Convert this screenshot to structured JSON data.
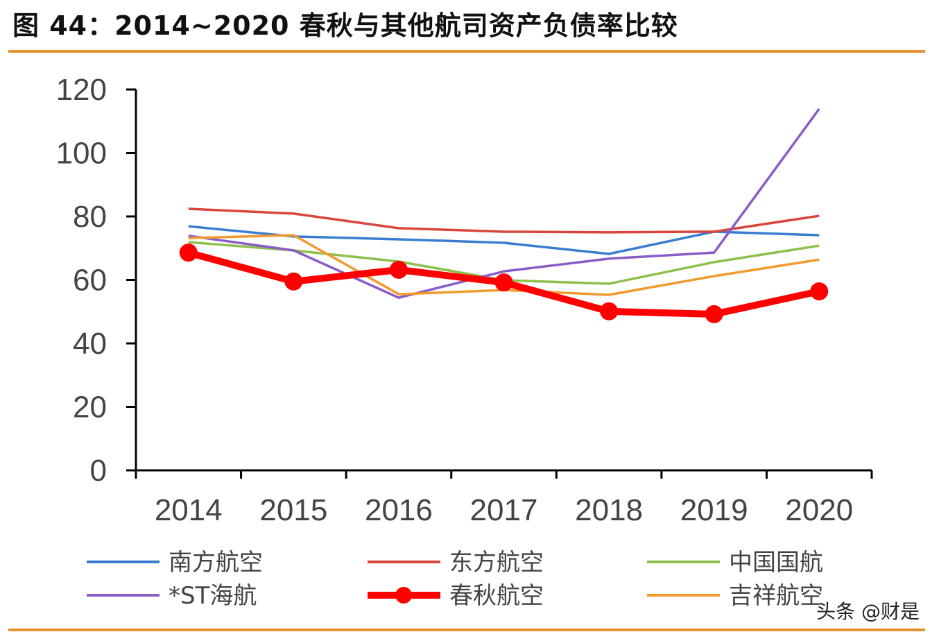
{
  "title": "图 44：2014~2020 春秋与其他航司资产负债率比较",
  "watermark": "头条 @财是",
  "chart_data": {
    "type": "line",
    "title": "图 44：2014~2020 春秋与其他航司资产负债率比较",
    "xlabel": "",
    "ylabel": "",
    "categories": [
      "2014",
      "2015",
      "2016",
      "2017",
      "2018",
      "2019",
      "2020"
    ],
    "ylim": [
      0,
      120
    ],
    "yticks": [
      0,
      20,
      40,
      60,
      80,
      100,
      120
    ],
    "grid": false,
    "legend_position": "bottom",
    "series": [
      {
        "name": "南方航空",
        "color": "#3a7dd0",
        "values": [
          76.9,
          73.7,
          72.8,
          71.7,
          68.2,
          75.2,
          74.1
        ]
      },
      {
        "name": "东方航空",
        "color": "#d9453b",
        "values": [
          82.4,
          80.9,
          76.3,
          75.2,
          75.0,
          75.2,
          80.2
        ]
      },
      {
        "name": "中国国航",
        "color": "#8cc04a",
        "values": [
          71.9,
          69.3,
          65.8,
          59.9,
          58.8,
          65.6,
          70.8
        ]
      },
      {
        "name": "*ST海航",
        "color": "#8a5cc8",
        "values": [
          73.9,
          69.3,
          54.4,
          62.7,
          66.7,
          68.6,
          113.9
        ]
      },
      {
        "name": "春秋航空",
        "color": "#ff0000",
        "values": [
          68.6,
          59.5,
          63.2,
          59.2,
          50.1,
          49.2,
          56.4
        ],
        "markers": true
      },
      {
        "name": "吉祥航空",
        "color": "#f39a2e",
        "values": [
          73.2,
          74.1,
          55.5,
          56.8,
          55.3,
          61.2,
          66.4
        ]
      }
    ]
  }
}
